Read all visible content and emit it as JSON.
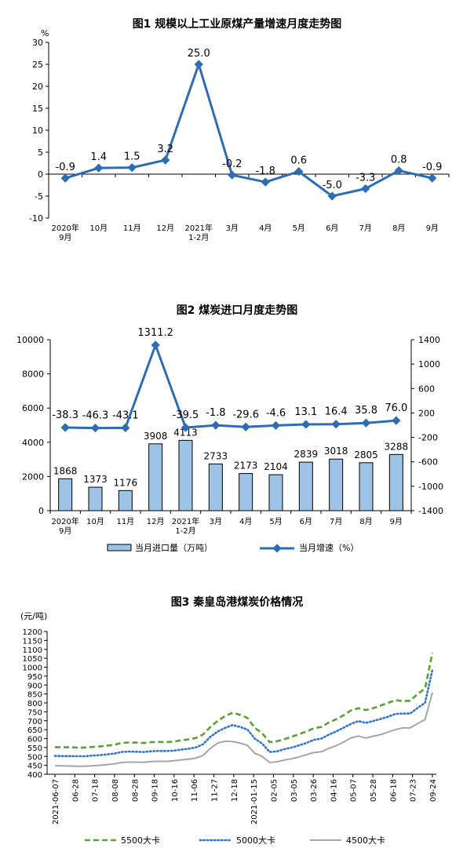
{
  "chart_data": [
    {
      "type": "line",
      "title": "图1  规模以上工业原煤产量增速月度走势图",
      "ylabel": "%",
      "ylim": [
        -10,
        30
      ],
      "yticks": [
        -10,
        -5,
        0,
        5,
        10,
        15,
        20,
        25,
        30
      ],
      "categories": [
        "2020年\n9月",
        "10月",
        "11月",
        "12月",
        "2021年\n1-2月",
        "3月",
        "4月",
        "5月",
        "6月",
        "7月",
        "8月",
        "9月"
      ],
      "series": [
        {
          "values": [
            -0.9,
            1.4,
            1.5,
            3.2,
            25.0,
            -0.2,
            -1.8,
            0.6,
            -5.0,
            -3.3,
            0.8,
            -0.9
          ],
          "labels": [
            "-0.9",
            "1.4",
            "1.5",
            "3.2",
            "25.0",
            "-0.2",
            "-1.8",
            "0.6",
            "-5.0",
            "-3.3",
            "0.8",
            "-0.9"
          ],
          "color": "#2E6DB4"
        }
      ]
    },
    {
      "type": "bar",
      "title": "图2  煤炭进口月度走势图",
      "categories": [
        "2020年\n9月",
        "10月",
        "11月",
        "12月",
        "2021年\n1-2月",
        "3月",
        "4月",
        "5月",
        "6月",
        "7月",
        "8月",
        "9月"
      ],
      "ylim": [
        0,
        10000
      ],
      "yticks": [
        0,
        2000,
        4000,
        6000,
        8000,
        10000
      ],
      "y2lim": [
        -1400,
        1400
      ],
      "y2ticks": [
        -1400,
        -1000,
        -600,
        -200,
        200,
        600,
        1000,
        1400
      ],
      "series": [
        {
          "name": "当月进口量（万吨）",
          "type": "bar",
          "axis": "left",
          "values": [
            1868,
            1373,
            1176,
            3908,
            4113,
            2733,
            2173,
            2104,
            2839,
            3018,
            2805,
            3288
          ],
          "labels": [
            "1868",
            "1373",
            "1176",
            "3908",
            "4113",
            "2733",
            "2173",
            "2104",
            "2839",
            "3018",
            "2805",
            "3288"
          ],
          "color": "#9DC3E6"
        },
        {
          "name": "当月增速（%）",
          "type": "line",
          "axis": "right",
          "values": [
            -38.3,
            -46.3,
            -43.1,
            1311.2,
            -39.5,
            -1.8,
            -29.6,
            -4.6,
            13.1,
            16.4,
            35.8,
            76.0
          ],
          "labels": [
            "-38.3",
            "-46.3",
            "-43.1",
            "1311.2",
            "-39.5",
            "-1.8",
            "-29.6",
            "-4.6",
            "13.1",
            "16.4",
            "35.8",
            "76.0"
          ],
          "color": "#2E6DB4"
        }
      ],
      "legend": "bottom"
    },
    {
      "type": "line",
      "title": "图3  秦皇岛港煤炭价格情况",
      "ylabel": "(元/吨)",
      "ylim": [
        400,
        1200
      ],
      "yticks": [
        400,
        450,
        500,
        550,
        600,
        650,
        700,
        750,
        800,
        850,
        900,
        950,
        1000,
        1050,
        1100,
        1150,
        1200
      ],
      "x_ticklabels": [
        "2021-06-07",
        "06-28",
        "07-18",
        "08-08",
        "08-28",
        "09-18",
        "10-16",
        "11-06",
        "11-27",
        "12-18",
        "2021-01-15",
        "02-05",
        "03-05",
        "03-26",
        "04-16",
        "05-07",
        "05-28",
        "06-18",
        "07-23",
        "09-24"
      ],
      "series": [
        {
          "name": "5500大卡",
          "style": "dashed",
          "color": "#5BA033",
          "values": [
            552,
            551,
            551,
            550,
            550,
            553,
            556,
            560,
            565,
            576,
            578,
            577,
            575,
            580,
            581,
            580,
            583,
            590,
            595,
            603,
            622,
            665,
            700,
            726,
            745,
            733,
            716,
            660,
            630,
            580,
            585,
            597,
            610,
            625,
            640,
            658,
            665,
            690,
            708,
            730,
            758,
            770,
            760,
            770,
            785,
            800,
            815,
            810,
            812,
            850,
            880,
            1080
          ]
        },
        {
          "name": "5000大卡",
          "style": "dotted",
          "color": "#2E75D0",
          "values": [
            503,
            502,
            502,
            501,
            501,
            504,
            507,
            511,
            516,
            525,
            527,
            526,
            525,
            529,
            531,
            530,
            532,
            538,
            543,
            550,
            568,
            610,
            640,
            660,
            676,
            665,
            651,
            600,
            572,
            525,
            528,
            541,
            550,
            562,
            576,
            593,
            600,
            622,
            640,
            661,
            682,
            698,
            688,
            698,
            710,
            722,
            738,
            740,
            740,
            772,
            800,
            985
          ]
        },
        {
          "name": "4500大卡",
          "style": "solid",
          "color": "#A6A6A6",
          "values": [
            448,
            447,
            446,
            445,
            445,
            447,
            450,
            454,
            458,
            466,
            468,
            468,
            467,
            471,
            473,
            472,
            475,
            480,
            484,
            490,
            505,
            545,
            575,
            585,
            583,
            575,
            562,
            518,
            500,
            466,
            470,
            480,
            487,
            497,
            510,
            522,
            526,
            545,
            560,
            580,
            604,
            614,
            603,
            613,
            622,
            636,
            650,
            660,
            660,
            684,
            706,
            858
          ]
        }
      ],
      "legend": "bottom"
    }
  ]
}
